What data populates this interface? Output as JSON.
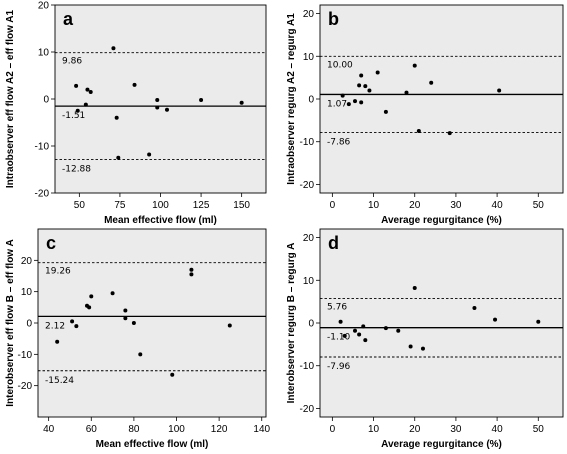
{
  "chart_data": [
    {
      "type": "scatter",
      "panel_label": "a",
      "xlabel": "Mean effective flow (ml)",
      "ylabel": "Intraobserver eff flow A2 – eff flow A1",
      "xlim": [
        35,
        165
      ],
      "ylim": [
        -20,
        20
      ],
      "xticks": [
        50,
        75,
        100,
        125,
        150
      ],
      "yticks": [
        -20,
        -10,
        0,
        10,
        20
      ],
      "mean": -1.51,
      "upper_loa": 9.86,
      "lower_loa": -12.88,
      "mean_label": "-1.51",
      "upper_label": "9.86",
      "lower_label": "-12.88",
      "points": [
        [
          48,
          2.8
        ],
        [
          49,
          -2.5
        ],
        [
          54,
          -1.2
        ],
        [
          55,
          2
        ],
        [
          57,
          1.5
        ],
        [
          71,
          10.8
        ],
        [
          73,
          -4
        ],
        [
          74,
          -12.5
        ],
        [
          84,
          3
        ],
        [
          93,
          -11.8
        ],
        [
          98,
          -0.2
        ],
        [
          98,
          -1.8
        ],
        [
          104,
          -2.3
        ],
        [
          125,
          -0.2
        ],
        [
          150,
          -0.8
        ]
      ]
    },
    {
      "type": "scatter",
      "panel_label": "b",
      "xlabel": "Average regurgitance (%)",
      "ylabel": "Intraobserver regurg A2 – regurg A1",
      "xlim": [
        -3,
        56
      ],
      "ylim": [
        -22,
        22
      ],
      "xticks": [
        0,
        10,
        20,
        30,
        40,
        50
      ],
      "yticks": [
        -20,
        -10,
        0,
        10,
        20
      ],
      "mean": 1.07,
      "upper_loa": 10.0,
      "lower_loa": -7.86,
      "mean_label": "1.07",
      "upper_label": "10.00",
      "lower_label": "-7.86",
      "points": [
        [
          2.5,
          0.8
        ],
        [
          4,
          -1.2
        ],
        [
          5.5,
          -0.5
        ],
        [
          6.5,
          3.2
        ],
        [
          7,
          5.5
        ],
        [
          7,
          -0.8
        ],
        [
          8,
          3
        ],
        [
          9,
          2
        ],
        [
          11,
          6.2
        ],
        [
          13,
          -3
        ],
        [
          18,
          1.5
        ],
        [
          20,
          7.8
        ],
        [
          21,
          -7.5
        ],
        [
          24,
          3.8
        ],
        [
          28.5,
          -8
        ],
        [
          40.5,
          2
        ]
      ]
    },
    {
      "type": "scatter",
      "panel_label": "c",
      "xlabel": "Mean effective flow (ml)",
      "ylabel": "Interobserver eff flow B – eff flow A",
      "xlim": [
        35,
        142
      ],
      "ylim": [
        -30,
        30
      ],
      "xticks": [
        40,
        60,
        80,
        100,
        120,
        140
      ],
      "yticks": [
        -20,
        -10,
        0,
        10,
        20
      ],
      "mean": 2.12,
      "upper_loa": 19.26,
      "lower_loa": -15.24,
      "mean_label": "2.12",
      "upper_label": "19.26",
      "lower_label": "-15.24",
      "points": [
        [
          44,
          -6
        ],
        [
          51,
          0.5
        ],
        [
          53,
          -1
        ],
        [
          58,
          5.5
        ],
        [
          59,
          5
        ],
        [
          60,
          8.5
        ],
        [
          70,
          9.5
        ],
        [
          76,
          4
        ],
        [
          76,
          1.5
        ],
        [
          80,
          0
        ],
        [
          83,
          -10
        ],
        [
          98,
          -16.5
        ],
        [
          107,
          17
        ],
        [
          107,
          15.5
        ],
        [
          125,
          -0.8
        ]
      ]
    },
    {
      "type": "scatter",
      "panel_label": "d",
      "xlabel": "Average regurgitance (%)",
      "ylabel": "Interobserver regurg B – regurg A",
      "xlim": [
        -3,
        56
      ],
      "ylim": [
        -22,
        22
      ],
      "xticks": [
        0,
        10,
        20,
        30,
        40,
        50
      ],
      "yticks": [
        -20,
        -10,
        0,
        10,
        20
      ],
      "mean": -1.1,
      "upper_loa": 5.76,
      "lower_loa": -7.96,
      "mean_label": "-1.10",
      "upper_label": "5.76",
      "lower_label": "-7.96",
      "points": [
        [
          2,
          0.3
        ],
        [
          3,
          -3
        ],
        [
          5.5,
          -1.8
        ],
        [
          6.5,
          -2.7
        ],
        [
          7.5,
          -0.8
        ],
        [
          8,
          -4
        ],
        [
          13,
          -1.2
        ],
        [
          16,
          -1.8
        ],
        [
          19,
          -5.5
        ],
        [
          20,
          8.2
        ],
        [
          22,
          -6
        ],
        [
          34.5,
          3.5
        ],
        [
          39.5,
          0.8
        ],
        [
          50,
          0.3
        ]
      ]
    }
  ]
}
